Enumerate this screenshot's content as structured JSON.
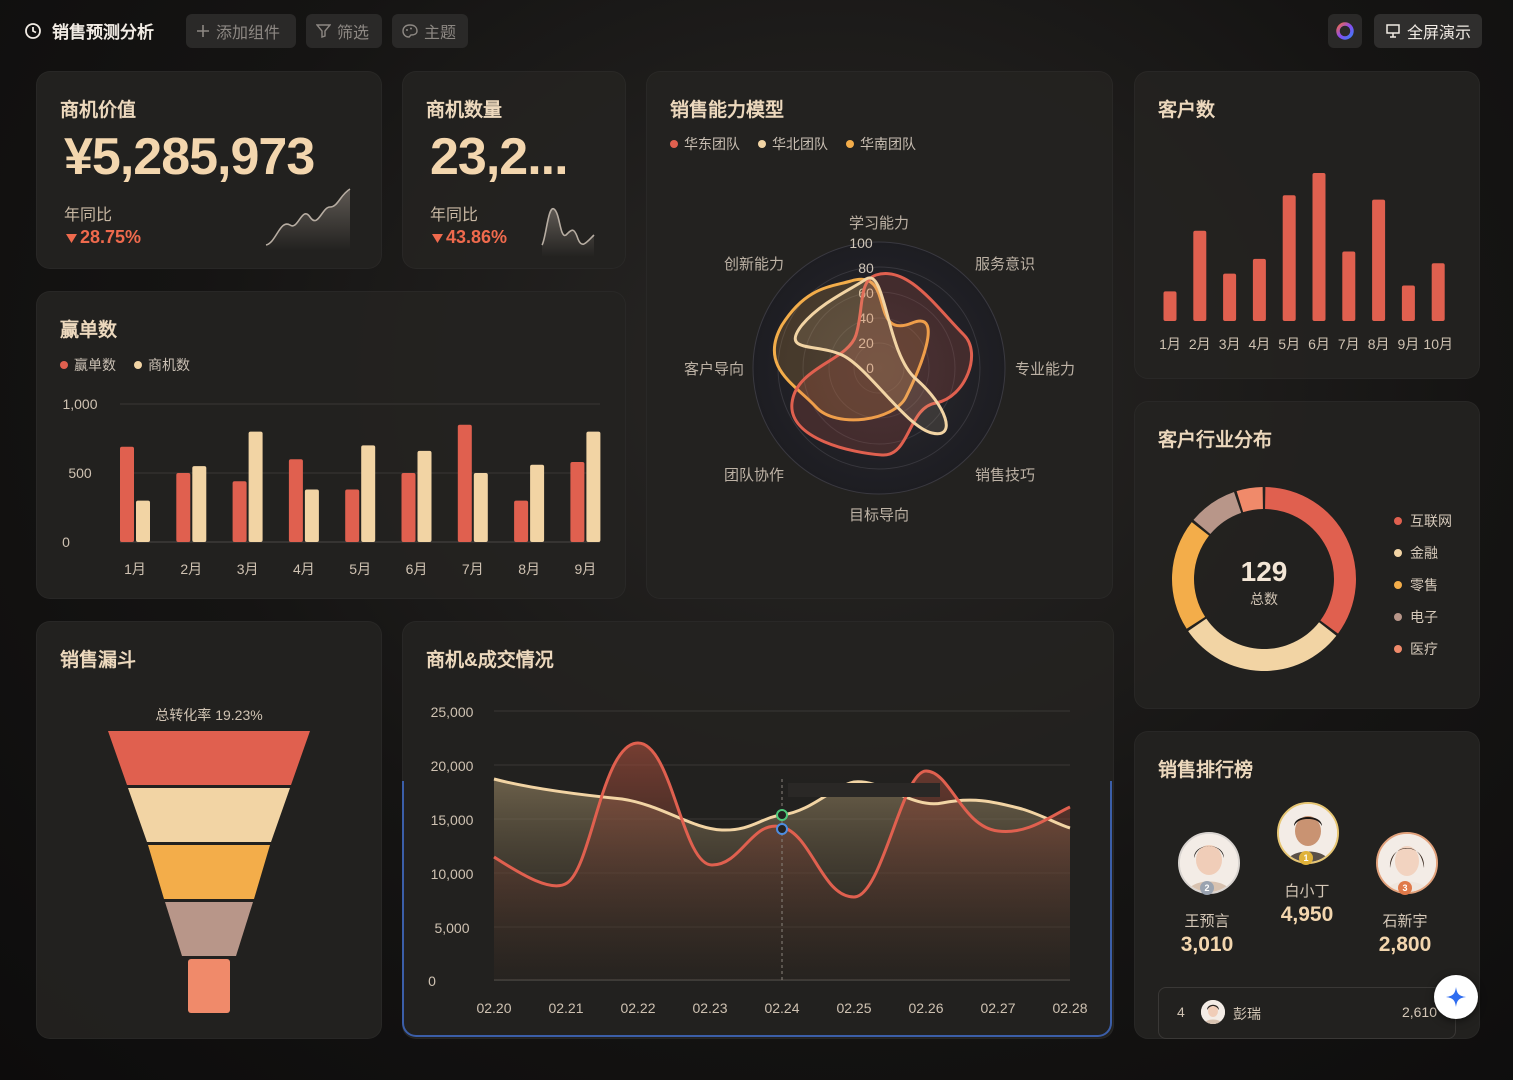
{
  "header": {
    "title": "销售预测分析",
    "add_widget": "添加组件",
    "filter": "筛选",
    "theme": "主题",
    "fullscreen": "全屏演示"
  },
  "kpi_value": {
    "title": "商机价值",
    "value": "¥5,285,973",
    "yoy_label": "年同比",
    "yoy": "28.75%"
  },
  "kpi_count": {
    "title": "商机数量",
    "value": "23,2...",
    "yoy_label": "年同比",
    "yoy": "43.86%"
  },
  "radar": {
    "title": "销售能力模型",
    "legend": [
      "华东团队",
      "华北团队",
      "华南团队"
    ],
    "axes": [
      "学习能力",
      "服务意识",
      "专业能力",
      "销售技巧",
      "目标导向",
      "团队协作",
      "客户导向",
      "创新能力"
    ],
    "ticks": [
      "100",
      "80",
      "60",
      "40",
      "20",
      "0"
    ]
  },
  "customers": {
    "title": "客户数",
    "months": [
      "1月",
      "2月",
      "3月",
      "4月",
      "5月",
      "6月",
      "7月",
      "8月",
      "9月",
      "10月"
    ],
    "values": [
      20,
      61,
      32,
      42,
      85,
      100,
      47,
      82,
      24,
      39
    ]
  },
  "wins": {
    "title": "赢单数",
    "legend": [
      "赢单数",
      "商机数"
    ],
    "yticks": [
      "1,000",
      "500",
      "0"
    ],
    "months": [
      "1月",
      "2月",
      "3月",
      "4月",
      "5月",
      "6月",
      "7月",
      "8月",
      "9月"
    ],
    "won": [
      690,
      500,
      440,
      600,
      380,
      500,
      850,
      300,
      580
    ],
    "opp": [
      300,
      550,
      800,
      380,
      700,
      660,
      500,
      560,
      800
    ]
  },
  "industry": {
    "title": "客户行业分布",
    "total": "129",
    "total_label": "总数",
    "legend": [
      "互联网",
      "金融",
      "零售",
      "电子",
      "医疗"
    ],
    "values": [
      35,
      30,
      20,
      9,
      5
    ]
  },
  "funnel": {
    "title": "销售漏斗",
    "rate": "总转化率 19.23%"
  },
  "deals": {
    "title": "商机&成交情况",
    "yticks": [
      "25,000",
      "20,000",
      "15,000",
      "10,000",
      "5,000",
      "0"
    ],
    "xticks": [
      "02.20",
      "02.21",
      "02.22",
      "02.23",
      "02.24",
      "02.25",
      "02.26",
      "02.27",
      "02.28"
    ]
  },
  "ranking": {
    "title": "销售排行榜",
    "top": [
      {
        "rank": "2",
        "name": "王预言",
        "value": "3,010"
      },
      {
        "rank": "1",
        "name": "白小丁",
        "value": "4,950"
      },
      {
        "rank": "3",
        "name": "石新宇",
        "value": "2,800"
      }
    ],
    "row4": {
      "rank": "4",
      "name": "彭瑞",
      "value": "2,610"
    }
  },
  "colors": {
    "red": "#e0604f",
    "cream": "#f2d4a4",
    "orange": "#f3ad4a",
    "mauve": "#b89689",
    "salmon": "#f08a6a"
  }
}
